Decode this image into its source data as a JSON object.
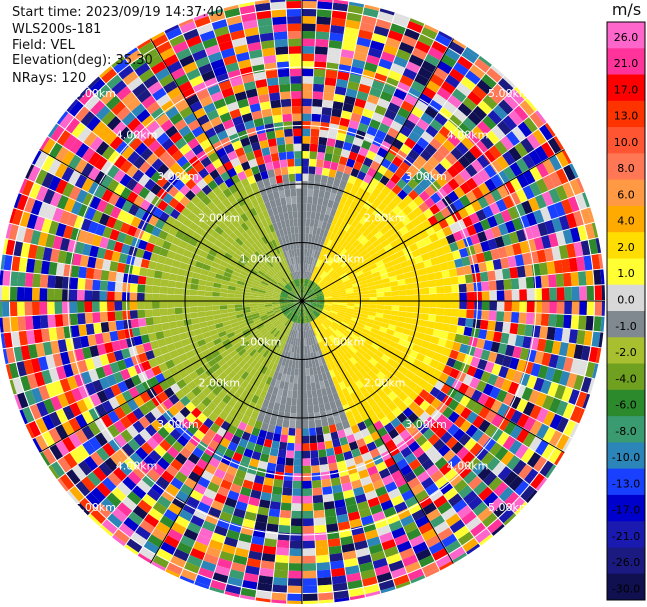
{
  "info": {
    "start_time": "Start time: 2023/09/19 14:37:40",
    "instrument": "WLS200s-181",
    "field": "Field: VEL",
    "elevation": "Elevation(deg): 35.30",
    "nrays": "NRays: 120"
  },
  "colorbar": {
    "unit": "m/s",
    "ticks": [
      "26.0",
      "21.0",
      "17.0",
      "13.0",
      "10.0",
      "8.0",
      "6.0",
      "4.0",
      "2.0",
      "1.0",
      "0.0",
      "-1.0",
      "-2.0",
      "-4.0",
      "-6.0",
      "-8.0",
      "-10.0",
      "-13.0",
      "-17.0",
      "-21.0",
      "-26.0",
      "-30.0"
    ],
    "colors": [
      "#ff66cc",
      "#ff3399",
      "#ff0000",
      "#ff3300",
      "#ff5533",
      "#ff7755",
      "#ff9944",
      "#ffaa00",
      "#ffdd00",
      "#ffff33",
      "#d8d8d8",
      "#808890",
      "#a8c030",
      "#70a020",
      "#2c8a2c",
      "#3a9a70",
      "#2b85b8",
      "#1a40ff",
      "#0000cc",
      "#1a1ab0",
      "#1a1a80",
      "#101050"
    ]
  },
  "chart_data": {
    "type": "ppi",
    "field": "VEL",
    "unit": "m/s",
    "rays": 120,
    "range_ring_labels": [
      "1.00km",
      "2.00km",
      "3.00km",
      "4.00km",
      "5.00km"
    ],
    "spoke_angles_deg": [
      0,
      30,
      60,
      90,
      120,
      150,
      180,
      210,
      240,
      270,
      300,
      330
    ],
    "valid_region_velocity": [
      {
        "sector": "west",
        "approx_ms": -2.0
      },
      {
        "sector": "east",
        "approx_ms": 2.0
      },
      {
        "sector": "north-south",
        "approx_ms": 0.0
      }
    ]
  }
}
